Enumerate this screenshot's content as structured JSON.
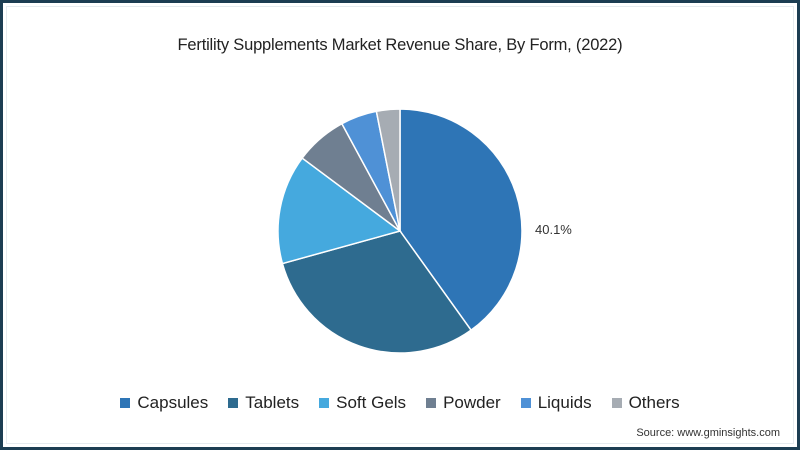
{
  "title": "Fertility Supplements Market Revenue Share, By Form, (2022)",
  "source": "Source: www.gminsights.com",
  "chart_data": {
    "type": "pie",
    "title": "Fertility Supplements Market Revenue Share, By Form, (2022)",
    "categories": [
      "Capsules",
      "Tablets",
      "Soft Gels",
      "Powder",
      "Liquids",
      "Others"
    ],
    "values": [
      40.1,
      30.6,
      14.5,
      6.9,
      4.8,
      3.1
    ],
    "colors": [
      "#2e75b6",
      "#2e6b8f",
      "#45a9de",
      "#6f7f91",
      "#4f91d6",
      "#a6acb3"
    ],
    "data_labels": [
      {
        "category": "Capsules",
        "text": "40.1%"
      }
    ],
    "legend_position": "bottom",
    "start_angle_deg": 0,
    "direction": "clockwise"
  },
  "legend": [
    {
      "label": "Capsules",
      "color": "#2e75b6"
    },
    {
      "label": "Tablets",
      "color": "#2e6b8f"
    },
    {
      "label": "Soft Gels",
      "color": "#45a9de"
    },
    {
      "label": "Powder",
      "color": "#6f7f91"
    },
    {
      "label": "Liquids",
      "color": "#4f91d6"
    },
    {
      "label": "Others",
      "color": "#a6acb3"
    }
  ],
  "data_label": "40.1%"
}
